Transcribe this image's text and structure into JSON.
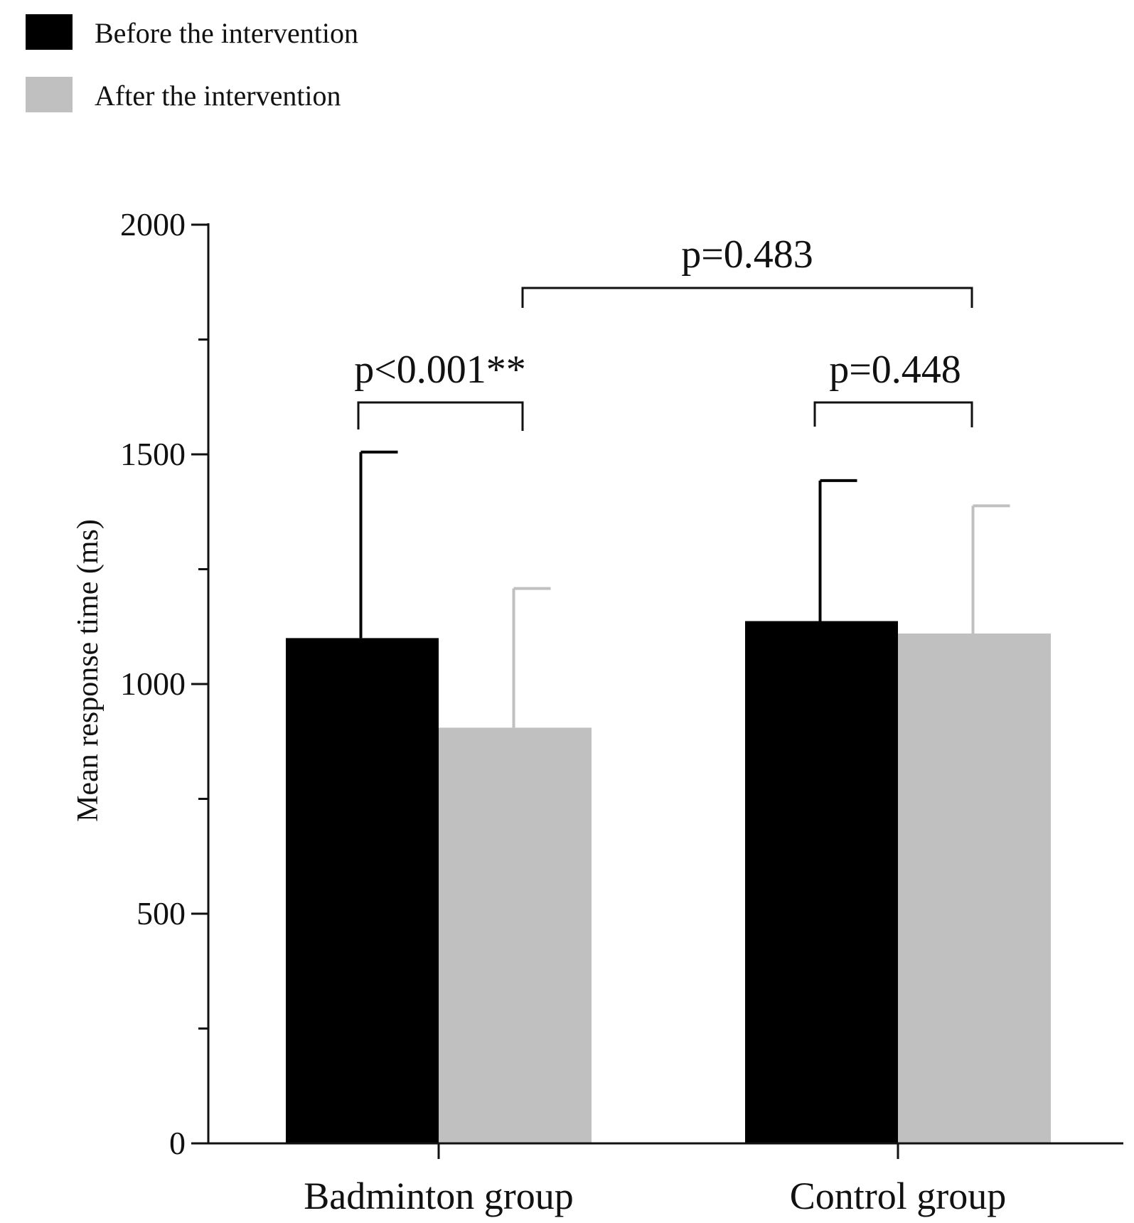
{
  "chart_data": {
    "type": "bar",
    "title": "",
    "xlabel": "",
    "ylabel": "Mean response time (ms)",
    "ylim": [
      0,
      2000
    ],
    "yticks": [
      0,
      500,
      1000,
      1500,
      2000
    ],
    "minor_yticks": [
      250,
      750,
      1250,
      1750
    ],
    "categories": [
      "Badminton group",
      "Control group"
    ],
    "series": [
      {
        "name": "Before the intervention",
        "color": "#000000",
        "values": [
          1100,
          1137
        ],
        "error_upper": [
          1505,
          1443
        ]
      },
      {
        "name": "After the intervention",
        "color": "#c0c0c0",
        "values": [
          905,
          1110
        ],
        "error_upper": [
          1208,
          1388
        ]
      }
    ],
    "legend": {
      "placement": "top-left"
    },
    "annotations": [
      {
        "label": "p<0.001**",
        "between": "Badminton group: Before vs After"
      },
      {
        "label": "p=0.448",
        "between": "Control group: Before vs After"
      },
      {
        "label": "p=0.483",
        "between": "Badminton group After vs Control group After"
      }
    ]
  }
}
